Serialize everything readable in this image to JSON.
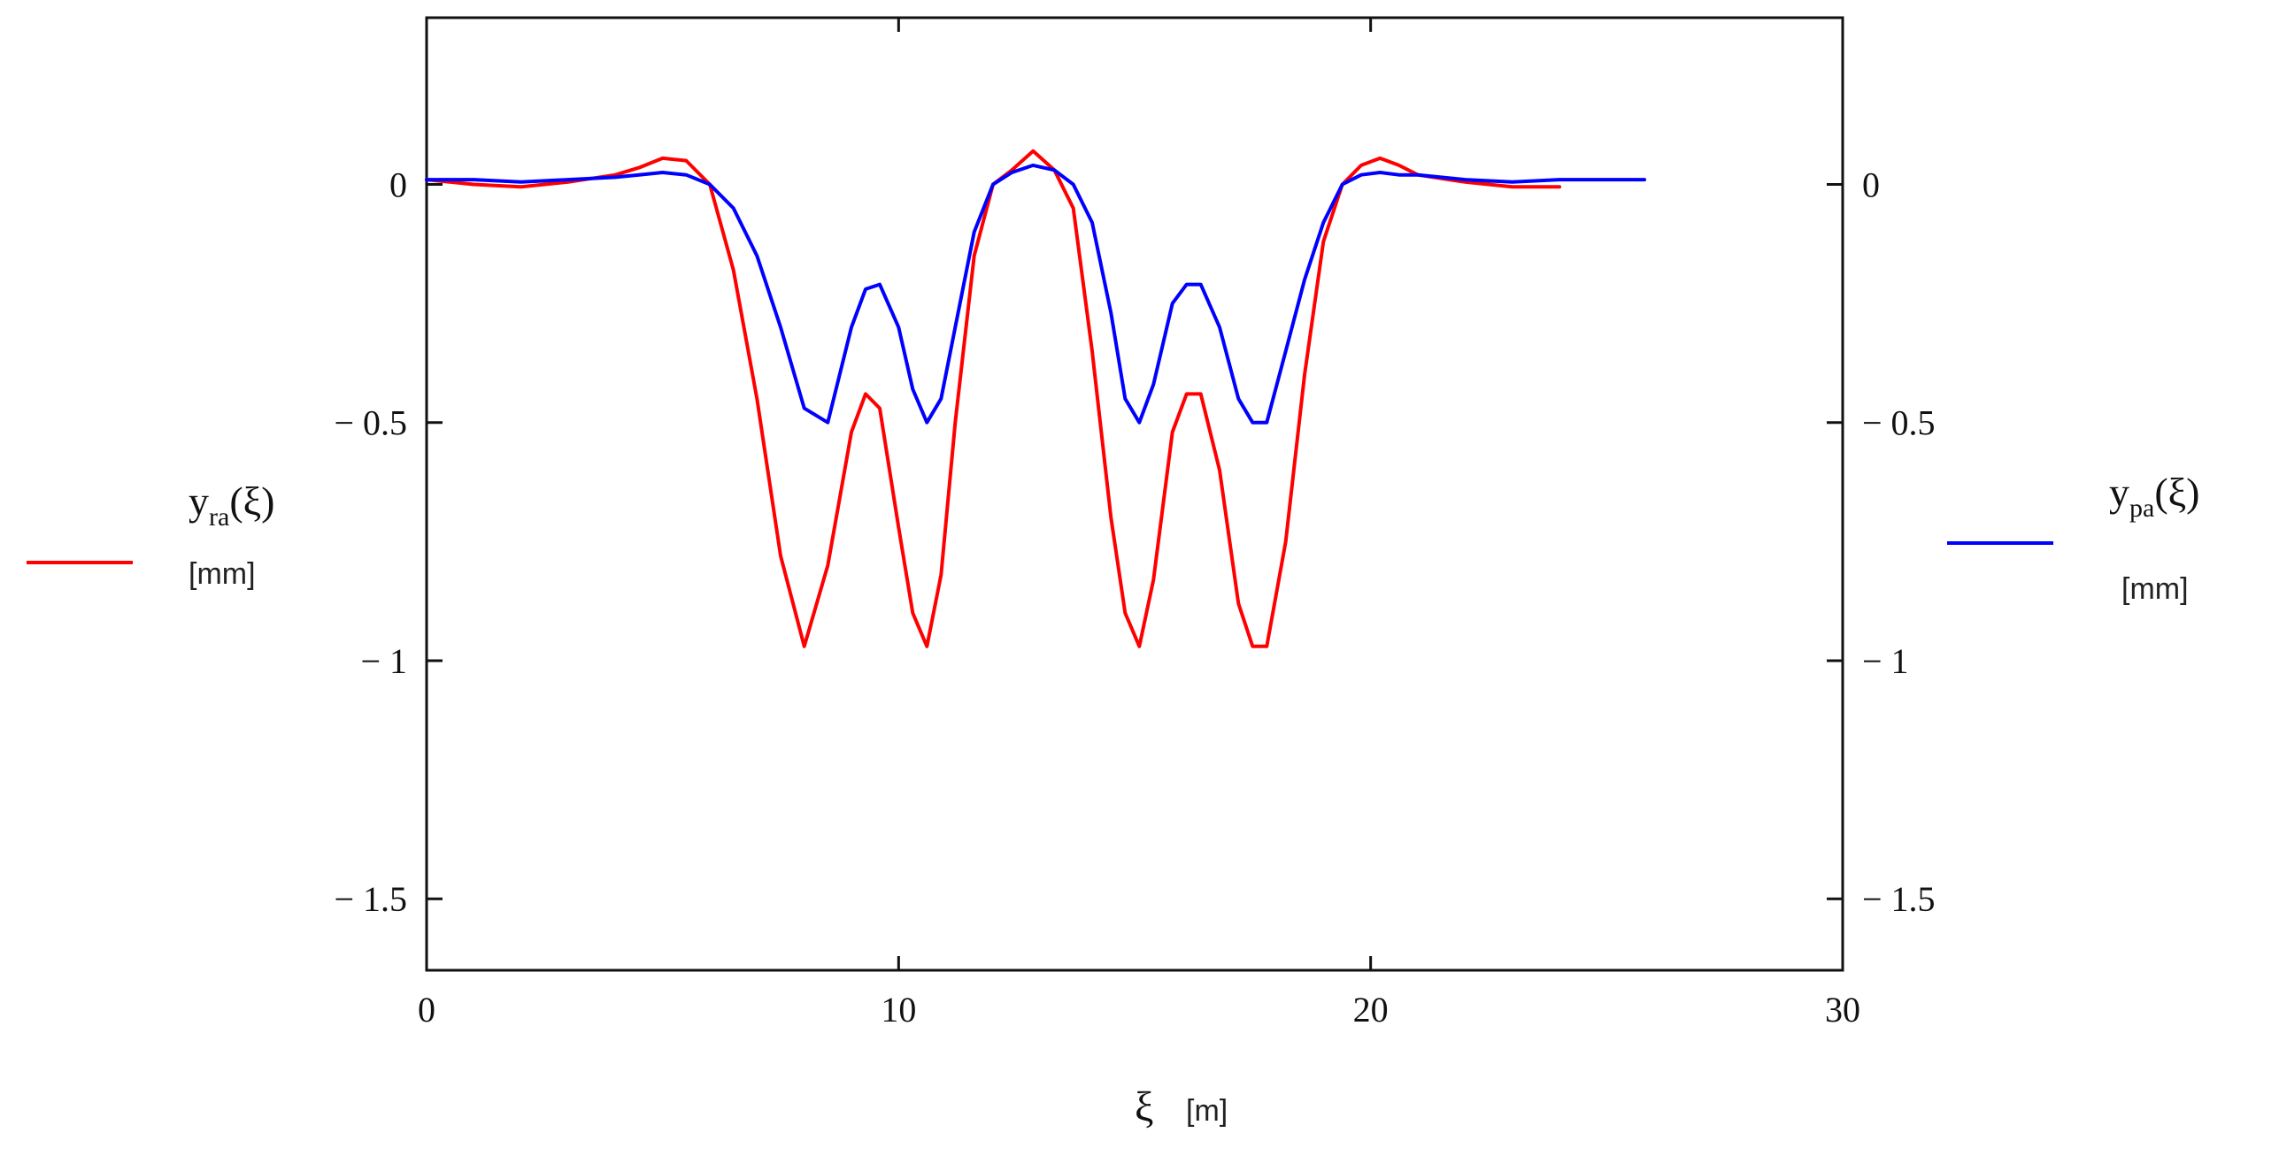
{
  "chart_data": {
    "type": "line",
    "xlim": [
      0,
      30
    ],
    "ylim": [
      -1.65,
      0.35
    ],
    "x_ticks": [
      {
        "value": 0,
        "label": "0"
      },
      {
        "value": 10,
        "label": "10"
      },
      {
        "value": 20,
        "label": "20"
      },
      {
        "value": 30,
        "label": "30"
      }
    ],
    "y_ticks": [
      {
        "value": 0,
        "label": "0"
      },
      {
        "value": -0.5,
        "label": "− 0.5"
      },
      {
        "value": -1,
        "label": "− 1"
      },
      {
        "value": -1.5,
        "label": "− 1.5"
      }
    ],
    "xlabel": {
      "symbol": "ξ",
      "unit": "[m]"
    },
    "series": [
      {
        "key": "ra",
        "name": "y",
        "subscript": "ra",
        "arg": "(ξ)",
        "unit": "[mm]",
        "color": "#ff0000",
        "x": [
          0,
          1,
          2,
          3,
          4,
          4.5,
          5,
          5.5,
          6,
          6.5,
          7,
          7.5,
          8,
          8.5,
          9,
          9.3,
          9.6,
          10,
          10.3,
          10.6,
          10.9,
          11.2,
          11.6,
          12,
          12.4,
          12.85,
          13.3,
          13.7,
          14.1,
          14.5,
          14.8,
          15.1,
          15.4,
          15.8,
          16.1,
          16.4,
          16.8,
          17.2,
          17.5,
          17.8,
          18.2,
          18.6,
          19,
          19.4,
          19.8,
          20.2,
          20.6,
          21,
          22,
          23,
          24
        ],
        "y": [
          0.01,
          0.0,
          -0.005,
          0.005,
          0.02,
          0.035,
          0.055,
          0.05,
          0.0,
          -0.18,
          -0.45,
          -0.78,
          -0.97,
          -0.8,
          -0.52,
          -0.44,
          -0.47,
          -0.72,
          -0.9,
          -0.97,
          -0.82,
          -0.5,
          -0.15,
          0.0,
          0.03,
          0.07,
          0.03,
          -0.05,
          -0.35,
          -0.7,
          -0.9,
          -0.97,
          -0.83,
          -0.52,
          -0.44,
          -0.44,
          -0.6,
          -0.88,
          -0.97,
          -0.97,
          -0.75,
          -0.4,
          -0.12,
          0.0,
          0.04,
          0.055,
          0.04,
          0.02,
          0.005,
          -0.005,
          -0.005
        ]
      },
      {
        "key": "pa",
        "name": "y",
        "subscript": "pa",
        "arg": "(ξ)",
        "unit": "[mm]",
        "color": "#0000ff",
        "x": [
          0,
          1,
          2,
          3,
          4,
          4.5,
          5,
          5.5,
          6,
          6.5,
          7,
          7.5,
          8,
          8.5,
          9,
          9.3,
          9.6,
          10,
          10.3,
          10.6,
          10.9,
          11.2,
          11.6,
          12,
          12.4,
          12.85,
          13.3,
          13.7,
          14.1,
          14.5,
          14.8,
          15.1,
          15.4,
          15.8,
          16.1,
          16.4,
          16.8,
          17.2,
          17.5,
          17.8,
          18.2,
          18.6,
          19,
          19.4,
          19.8,
          20.2,
          20.6,
          21,
          22,
          23,
          24,
          25,
          25.8
        ],
        "y": [
          0.01,
          0.01,
          0.005,
          0.01,
          0.015,
          0.02,
          0.025,
          0.02,
          0.0,
          -0.05,
          -0.15,
          -0.3,
          -0.47,
          -0.5,
          -0.3,
          -0.22,
          -0.21,
          -0.3,
          -0.43,
          -0.5,
          -0.45,
          -0.3,
          -0.1,
          0.0,
          0.025,
          0.04,
          0.03,
          0.0,
          -0.08,
          -0.27,
          -0.45,
          -0.5,
          -0.42,
          -0.25,
          -0.21,
          -0.21,
          -0.3,
          -0.45,
          -0.5,
          -0.5,
          -0.35,
          -0.2,
          -0.08,
          0.0,
          0.02,
          0.025,
          0.02,
          0.02,
          0.01,
          0.005,
          0.01,
          0.01,
          0.01
        ]
      }
    ]
  }
}
